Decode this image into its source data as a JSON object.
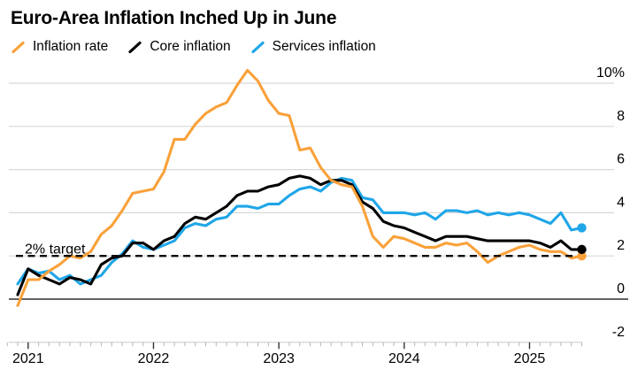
{
  "chart_data": {
    "type": "line",
    "title": "Euro-Area Inflation Inched Up in June",
    "x_unit": "month",
    "x": [
      "2020-12",
      "2021-01",
      "2021-02",
      "2021-03",
      "2021-04",
      "2021-05",
      "2021-06",
      "2021-07",
      "2021-08",
      "2021-09",
      "2021-10",
      "2021-11",
      "2021-12",
      "2022-01",
      "2022-02",
      "2022-03",
      "2022-04",
      "2022-05",
      "2022-06",
      "2022-07",
      "2022-08",
      "2022-09",
      "2022-10",
      "2022-11",
      "2022-12",
      "2023-01",
      "2023-02",
      "2023-03",
      "2023-04",
      "2023-05",
      "2023-06",
      "2023-07",
      "2023-08",
      "2023-09",
      "2023-10",
      "2023-11",
      "2023-12",
      "2024-01",
      "2024-02",
      "2024-03",
      "2024-04",
      "2024-05",
      "2024-06",
      "2024-07",
      "2024-08",
      "2024-09",
      "2024-10",
      "2024-11",
      "2024-12",
      "2025-01",
      "2025-02",
      "2025-03",
      "2025-04",
      "2025-05",
      "2025-06"
    ],
    "series": [
      {
        "name": "Inflation rate",
        "color": "#F9A13A",
        "values": [
          -0.3,
          0.9,
          0.9,
          1.3,
          1.6,
          2.0,
          1.9,
          2.2,
          3.0,
          3.4,
          4.1,
          4.9,
          5.0,
          5.1,
          5.9,
          7.4,
          7.4,
          8.1,
          8.6,
          8.9,
          9.1,
          9.9,
          10.6,
          10.1,
          9.2,
          8.6,
          8.5,
          6.9,
          7.0,
          6.1,
          5.5,
          5.3,
          5.2,
          4.3,
          2.9,
          2.4,
          2.9,
          2.8,
          2.6,
          2.4,
          2.4,
          2.6,
          2.5,
          2.6,
          2.2,
          1.7,
          2.0,
          2.2,
          2.4,
          2.5,
          2.3,
          2.2,
          2.2,
          1.9,
          2.0
        ]
      },
      {
        "name": "Core inflation",
        "color": "#000000",
        "values": [
          0.2,
          1.4,
          1.1,
          0.9,
          0.7,
          1.0,
          0.9,
          0.7,
          1.6,
          1.9,
          2.0,
          2.6,
          2.6,
          2.3,
          2.7,
          2.9,
          3.5,
          3.8,
          3.7,
          4.0,
          4.3,
          4.8,
          5.0,
          5.0,
          5.2,
          5.3,
          5.6,
          5.7,
          5.6,
          5.3,
          5.5,
          5.5,
          5.3,
          4.5,
          4.2,
          3.6,
          3.4,
          3.3,
          3.1,
          2.9,
          2.7,
          2.9,
          2.9,
          2.9,
          2.8,
          2.7,
          2.7,
          2.7,
          2.7,
          2.7,
          2.6,
          2.4,
          2.7,
          2.3,
          2.3
        ]
      },
      {
        "name": "Services inflation",
        "color": "#1FA6E8",
        "values": [
          0.7,
          1.4,
          1.2,
          1.3,
          0.9,
          1.1,
          0.7,
          0.9,
          1.1,
          1.7,
          2.1,
          2.7,
          2.4,
          2.3,
          2.5,
          2.7,
          3.3,
          3.5,
          3.4,
          3.7,
          3.8,
          4.3,
          4.3,
          4.2,
          4.4,
          4.4,
          4.8,
          5.1,
          5.2,
          5.0,
          5.4,
          5.6,
          5.5,
          4.7,
          4.6,
          4.0,
          4.0,
          4.0,
          3.9,
          4.0,
          3.7,
          4.1,
          4.1,
          4.0,
          4.1,
          3.9,
          4.0,
          3.9,
          4.0,
          3.9,
          3.7,
          3.5,
          4.0,
          3.2,
          3.3
        ]
      }
    ],
    "y_axis": {
      "tick_labels": [
        "10%",
        "8",
        "6",
        "4",
        "2",
        "0",
        "-2"
      ],
      "tick_values": [
        10,
        8,
        6,
        4,
        2,
        0,
        -2
      ],
      "ylim": [
        -2,
        11
      ]
    },
    "x_axis": {
      "year_labels": [
        "2021",
        "2022",
        "2023",
        "2024",
        "2025"
      ],
      "year_indices": [
        1,
        13,
        25,
        37,
        49
      ]
    },
    "target_line": {
      "label": "2% target",
      "value": 2,
      "style": "dashed"
    },
    "grid": "horizontal",
    "legend_position": "top-left",
    "end_markers": true
  },
  "colors": {
    "grid": "#D8D8D8",
    "zero_line": "#4D4D4D",
    "axis_line": "#CFCFCF",
    "month_tick": "#B5B5B5",
    "year_tick": "#333333",
    "target_line": "#0A0A0A",
    "background": "#FFFFFF",
    "text": "#000000"
  }
}
